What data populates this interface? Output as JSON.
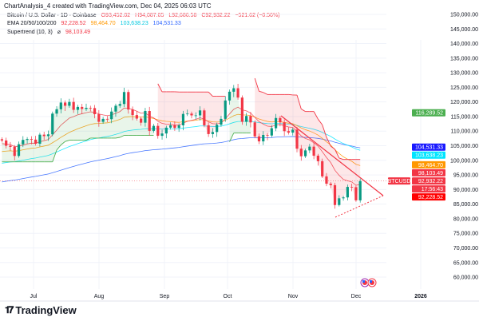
{
  "caption": "ChartAnalysis_4 created with TradingView.com, Dec 04, 2025 06:03 UTC",
  "legend": {
    "symbol": "Bitcoin / U.S. Dollar · 1D · Coinbase",
    "open": "O93,452.02",
    "high": "H94,087.05",
    "low": "L92,686.58",
    "close": "C92,932.22",
    "change": "−521.62 (−0.56%)",
    "ema_label": "EMA 20/50/100/200",
    "ema_values": [
      "92,228.52",
      "98,464.70",
      "103,638.23",
      "104,531.33"
    ],
    "supertrend_label": "Supertrend (10, 3)",
    "supertrend_value": "98,103.49"
  },
  "colors": {
    "up": "#089981",
    "down": "#f23645",
    "ema20": "#f23645",
    "ema50": "#ff9800",
    "ema100": "#00e5ff",
    "ema200": "#2962ff",
    "st_up": "#4caf50",
    "st_down": "#f23645",
    "trendline": "#f23645"
  },
  "price_labels": [
    {
      "text": "116,289.52",
      "bg": "#4caf50",
      "price": 116289.52
    },
    {
      "text": "104,531.33",
      "bg": "#1a1aff",
      "price": 104531.33
    },
    {
      "text": "103,638.23",
      "bg": "#00e5ff",
      "price": 103638.23
    },
    {
      "text": "98,464.70",
      "bg": "#ff9800",
      "price": 98464.7
    },
    {
      "text": "98,103.49",
      "bg": "#f23645",
      "price": 98103.49
    },
    {
      "text": "92,932.22",
      "bg": "#f23645",
      "price": 92932.22
    },
    {
      "text": "17:56:43",
      "bg": "#f23645",
      "price": 90700
    },
    {
      "text": "92,228.52",
      "bg": "#ff0000",
      "price": 88900
    }
  ],
  "symbol_tag": "BTCUSD",
  "logo_text": "TradingView",
  "chart_data": {
    "type": "candlestick",
    "title": "Bitcoin / U.S. Dollar · 1D · Coinbase",
    "ylim": [
      60000,
      150000
    ],
    "y_ticks": [
      "150,000.00",
      "145,000.00",
      "140,000.00",
      "135,000.00",
      "130,000.00",
      "125,000.00",
      "120,000.00",
      "115,000.00",
      "110,000.00",
      "105,000.00",
      "100,000.00",
      "95,000.00",
      "90,000.00",
      "85,000.00",
      "80,000.00",
      "75,000.00",
      "70,000.00",
      "65,000.00",
      "60,000.00"
    ],
    "x_ticks": [
      "Jul",
      "Aug",
      "Sep",
      "Oct",
      "Nov",
      "Dec",
      "2026"
    ],
    "x_start": "2025-06-16",
    "x_step_days": 2,
    "closes": [
      106.8,
      105.0,
      104.6,
      101.5,
      105.5,
      107.0,
      107.3,
      107.1,
      105.7,
      108.8,
      108.3,
      108.9,
      116.0,
      117.5,
      119.8,
      118.7,
      120.0,
      117.3,
      118.3,
      117.6,
      118.0,
      117.9,
      115.8,
      113.2,
      114.2,
      114.1,
      116.7,
      118.7,
      119.3,
      123.4,
      117.4,
      115.5,
      114.3,
      112.9,
      116.9,
      110.1,
      111.8,
      108.4,
      109.2,
      111.2,
      112.0,
      111.1,
      112.0,
      115.9,
      116.0,
      115.4,
      115.4,
      117.1,
      112.0,
      109.0,
      109.7,
      112.2,
      114.2,
      120.5,
      123.5,
      124.7,
      121.5,
      113.2,
      115.2,
      113.0,
      108.2,
      106.5,
      108.7,
      108.5,
      111.0,
      114.5,
      113.0,
      110.0,
      109.5,
      110.5,
      104.0,
      101.4,
      103.4,
      104.7,
      101.6,
      99.7,
      94.5,
      92.0,
      91.5,
      84.7,
      87.0,
      87.3,
      90.9,
      90.8,
      86.3,
      92.9
    ],
    "closes_unit": "thousand USD",
    "last": {
      "open": 93452.02,
      "high": 94087.05,
      "low": 92686.58,
      "close": 92932.22
    }
  }
}
